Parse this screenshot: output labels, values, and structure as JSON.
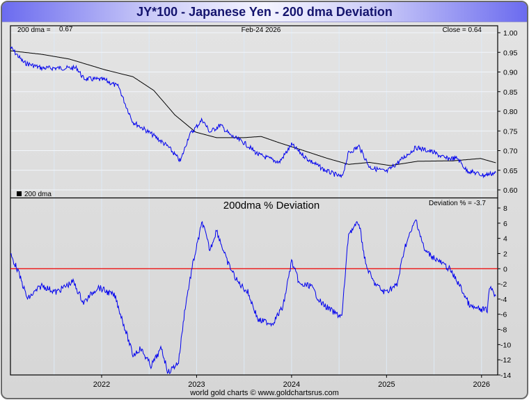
{
  "title": "JY*100  -  Japanese Yen - 200 dma Deviation",
  "footer": "world gold charts © www.goldchartsrus.com",
  "colors": {
    "price": "#0000ee",
    "dma": "#000000",
    "zero_line": "#ee0000",
    "grid": "#dde9f5"
  },
  "chart_data": [
    {
      "type": "line",
      "panel": "top",
      "header": {
        "dma_label": "200 dma =",
        "dma_value": "0.67",
        "date": "Feb-24  2026",
        "close": "Close = 0.64"
      },
      "legend": "200 dma",
      "legend_placement": "bottom-left",
      "ylim": [
        0.6,
        1.0
      ],
      "yticks": [
        "1.00",
        "0.95",
        "0.90",
        "0.85",
        "0.80",
        "0.75",
        "0.70",
        "0.65",
        "0.60"
      ],
      "series": [
        {
          "name": "Close",
          "x": [
            2021.04,
            2021.18,
            2021.37,
            2021.59,
            2021.74,
            2021.81,
            2022.03,
            2022.18,
            2022.25,
            2022.33,
            2022.44,
            2022.55,
            2022.7,
            2022.83,
            2022.92,
            2023.06,
            2023.14,
            2023.25,
            2023.36,
            2023.5,
            2023.65,
            2023.87,
            2024.0,
            2024.16,
            2024.35,
            2024.53,
            2024.6,
            2024.71,
            2024.82,
            2025.0,
            2025.15,
            2025.31,
            2025.48,
            2025.62,
            2025.75,
            2025.84,
            2026.02,
            2026.15
          ],
          "y": [
            0.963,
            0.924,
            0.91,
            0.91,
            0.91,
            0.883,
            0.88,
            0.862,
            0.818,
            0.773,
            0.756,
            0.738,
            0.71,
            0.673,
            0.738,
            0.779,
            0.747,
            0.765,
            0.738,
            0.72,
            0.69,
            0.67,
            0.715,
            0.68,
            0.65,
            0.632,
            0.694,
            0.711,
            0.658,
            0.646,
            0.676,
            0.708,
            0.697,
            0.68,
            0.68,
            0.65,
            0.637,
            0.644
          ]
        },
        {
          "name": "200 dma",
          "x": [
            2021.04,
            2021.37,
            2021.66,
            2022.03,
            2022.33,
            2022.55,
            2022.77,
            2022.99,
            2023.21,
            2023.5,
            2023.68,
            2023.87,
            2024.09,
            2024.38,
            2024.6,
            2024.82,
            2025.04,
            2025.33,
            2025.7,
            2025.99,
            2026.15
          ],
          "y": [
            0.954,
            0.945,
            0.933,
            0.906,
            0.888,
            0.853,
            0.791,
            0.747,
            0.733,
            0.733,
            0.736,
            0.72,
            0.703,
            0.68,
            0.665,
            0.67,
            0.662,
            0.673,
            0.674,
            0.68,
            0.669
          ]
        }
      ]
    },
    {
      "type": "line",
      "panel": "bottom",
      "title": "200dma  %  Deviation",
      "annotation": "Deviation % = -3.7",
      "ylim": [
        -14,
        8
      ],
      "yticks": [
        "8",
        "6",
        "4",
        "2",
        "0",
        "-2",
        "-4",
        "-6",
        "-8",
        "-10",
        "-12",
        "-14"
      ],
      "xlim": [
        2021.04,
        2026.17
      ],
      "xticks": [
        "2022",
        "2023",
        "2024",
        "2025",
        "2026"
      ],
      "series": [
        {
          "name": "Deviation %",
          "x": [
            2021.04,
            2021.11,
            2021.22,
            2021.37,
            2021.52,
            2021.7,
            2021.81,
            2021.96,
            2022.14,
            2022.22,
            2022.33,
            2022.41,
            2022.52,
            2022.63,
            2022.7,
            2022.81,
            2022.88,
            2022.96,
            2023.06,
            2023.14,
            2023.21,
            2023.32,
            2023.43,
            2023.54,
            2023.65,
            2023.8,
            2023.91,
            2024.0,
            2024.09,
            2024.2,
            2024.31,
            2024.46,
            2024.53,
            2024.6,
            2024.71,
            2024.78,
            2024.86,
            2024.97,
            2025.11,
            2025.19,
            2025.31,
            2025.4,
            2025.55,
            2025.66,
            2025.77,
            2025.88,
            2025.99,
            2026.06,
            2026.09,
            2026.15
          ],
          "y": [
            1.9,
            0,
            -4,
            -2.2,
            -3.1,
            -1.7,
            -4.5,
            -2.4,
            -3.6,
            -6.8,
            -11.4,
            -10.5,
            -12.8,
            -10.5,
            -13.7,
            -12.3,
            -5,
            0.6,
            6.2,
            2.4,
            5.1,
            1,
            -1.7,
            -3.1,
            -6.8,
            -7.2,
            -5,
            1,
            -2.2,
            -2.2,
            -4.5,
            -5.9,
            -6.3,
            4.7,
            6.1,
            0.6,
            -1.7,
            -3.1,
            -2.2,
            2.8,
            6.5,
            2.4,
            1,
            0,
            -2.2,
            -5,
            -5.4,
            -5.4,
            -2.2,
            -3.6
          ]
        }
      ]
    }
  ]
}
